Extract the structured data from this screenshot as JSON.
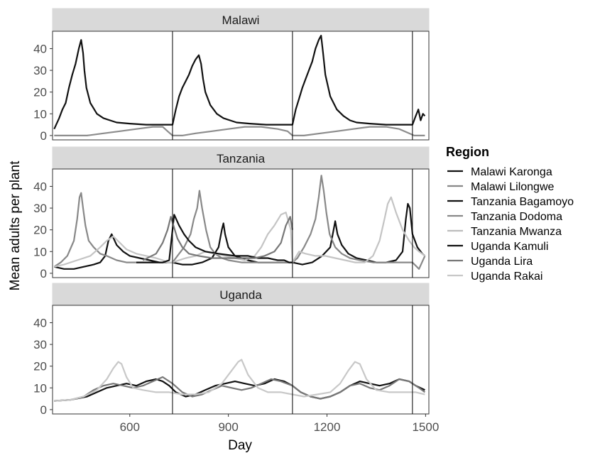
{
  "chart_data": {
    "type": "line",
    "xlabel": "Day",
    "ylabel": "Mean adults per plant",
    "xlim": [
      365,
      1510
    ],
    "ylim": [
      -2,
      48
    ],
    "xticks": [
      600,
      900,
      1200,
      1500
    ],
    "yticks": [
      0,
      10,
      20,
      30,
      40
    ],
    "vlines": [
      730,
      1095,
      1460
    ],
    "grid": false,
    "legend": {
      "title": "Region",
      "placement": "right",
      "entries": [
        {
          "label": "Malawi Karonga",
          "color": "#111111"
        },
        {
          "label": "Malawi Lilongwe",
          "color": "#888888"
        },
        {
          "label": "Tanzania Bagamoyo",
          "color": "#111111"
        },
        {
          "label": "Tanzania Dodoma",
          "color": "#888888"
        },
        {
          "label": "Tanzania Mwanza",
          "color": "#bdbdbd"
        },
        {
          "label": "Uganda Kamuli",
          "color": "#111111"
        },
        {
          "label": "Uganda Lira",
          "color": "#777777"
        },
        {
          "label": "Uganda Rakai",
          "color": "#c8c8c8"
        }
      ]
    },
    "panels": [
      {
        "title": "Malawi",
        "series": [
          {
            "name": "Malawi Karonga",
            "color": "#111111",
            "x": [
              370,
              385,
              395,
              405,
              415,
              425,
              435,
              445,
              452,
              458,
              462,
              468,
              480,
              500,
              520,
              540,
              560,
              600,
              650,
              700,
              730,
              740,
              750,
              760,
              770,
              780,
              790,
              800,
              810,
              817,
              823,
              830,
              845,
              865,
              885,
              905,
              925,
              965,
              1015,
              1065,
              1095,
              1105,
              1115,
              1125,
              1135,
              1145,
              1155,
              1165,
              1175,
              1182,
              1188,
              1195,
              1210,
              1230,
              1250,
              1270,
              1290,
              1330,
              1380,
              1430,
              1460,
              1470,
              1478,
              1485,
              1492,
              1498
            ],
            "y": [
              3,
              8,
              12,
              15,
              22,
              28,
              33,
              40,
              44,
              38,
              30,
              22,
              15,
              10,
              8,
              7,
              6,
              5.5,
              5,
              5,
              5,
              12,
              18,
              22,
              25,
              28,
              32,
              35,
              37,
              33,
              26,
              20,
              14,
              10,
              8,
              7,
              6,
              5.5,
              5,
              5,
              5,
              12,
              17,
              22,
              26,
              30,
              34,
              40,
              44,
              46,
              38,
              28,
              18,
              12,
              9,
              7,
              6,
              5.5,
              5,
              5,
              5,
              9,
              12,
              7,
              10,
              9
            ]
          },
          {
            "name": "Malawi Lilongwe",
            "color": "#8c8c8c",
            "x": [
              370,
              420,
              470,
              520,
              570,
              620,
              670,
              700,
              715,
              730,
              760,
              800,
              850,
              900,
              950,
              1000,
              1050,
              1080,
              1095,
              1130,
              1180,
              1230,
              1280,
              1330,
              1380,
              1420,
              1450,
              1465,
              1498
            ],
            "y": [
              0,
              0,
              0,
              1,
              2,
              3,
              4,
              4,
              2,
              0,
              0,
              1,
              2,
              3,
              4,
              4,
              3,
              2,
              0,
              0,
              1,
              2,
              3,
              4,
              4,
              3,
              1,
              0,
              0
            ]
          }
        ]
      },
      {
        "title": "Tanzania",
        "series": [
          {
            "name": "Tanzania Bagamoyo",
            "color": "#111111",
            "x": [
              370,
              400,
              430,
              460,
              490,
              510,
              525,
              535,
              545,
              560,
              580,
              600,
              630,
              660,
              690,
              730,
              760,
              790,
              820,
              850,
              870,
              880,
              885,
              890,
              900,
              920,
              940,
              960,
              990,
              1020,
              1050,
              1095,
              1125,
              1155,
              1185,
              1210,
              1220,
              1225,
              1232,
              1245,
              1265,
              1290,
              1320,
              1350,
              1380,
              1410,
              1430,
              1440,
              1446,
              1452,
              1460,
              1475,
              1490,
              1498
            ],
            "y": [
              3,
              2,
              2,
              3,
              4,
              5,
              8,
              15,
              18,
              13,
              10,
              8,
              7,
              6,
              5,
              5,
              4,
              4,
              5,
              7,
              12,
              20,
              23,
              18,
              12,
              8,
              7,
              6,
              5,
              5,
              5,
              5,
              4,
              5,
              8,
              12,
              20,
              24,
              18,
              13,
              9,
              7,
              6,
              5,
              5,
              6,
              10,
              25,
              32,
              30,
              18,
              12,
              9,
              8
            ]
          },
          {
            "name": "Tanzania Dodoma",
            "color": "#888888",
            "x": [
              370,
              390,
              410,
              430,
              440,
              447,
              452,
              458,
              465,
              475,
              490,
              510,
              530,
              560,
              590,
              620,
              660,
              700,
              720,
              730,
              745,
              765,
              785,
              795,
              805,
              812,
              820,
              832,
              845,
              860,
              880,
              900,
              940,
              980,
              1020,
              1060,
              1095,
              1110,
              1130,
              1150,
              1165,
              1175,
              1183,
              1190,
              1198,
              1208,
              1225,
              1245,
              1270,
              1300,
              1340,
              1380,
              1420,
              1460,
              1480,
              1498
            ],
            "y": [
              3,
              5,
              8,
              15,
              25,
              35,
              37,
              30,
              22,
              15,
              12,
              9,
              8,
              6,
              5,
              5,
              5,
              5,
              5,
              5,
              8,
              12,
              18,
              25,
              30,
              38,
              30,
              20,
              12,
              9,
              7,
              6,
              5,
              5,
              5,
              5,
              5,
              7,
              12,
              18,
              25,
              35,
              45,
              38,
              28,
              18,
              12,
              9,
              7,
              6,
              5,
              5,
              5,
              5,
              2,
              8
            ]
          },
          {
            "name": "Tanzania Mwanza",
            "color": "#c4c4c4",
            "x": [
              370,
              400,
              440,
              480,
              510,
              530,
              550,
              570,
              590,
              620,
              650,
              680,
              700,
              715,
              730,
              750,
              770,
              800,
              830,
              860,
              890,
              920,
              950,
              980,
              1000,
              1020,
              1040,
              1060,
              1075,
              1090,
              1095,
              1115,
              1135,
              1165,
              1195,
              1225,
              1255,
              1285,
              1315,
              1340,
              1360,
              1375,
              1385,
              1395,
              1410,
              1430,
              1450,
              1465,
              1480,
              1498
            ],
            "y": [
              3,
              4,
              6,
              8,
              12,
              15,
              17,
              14,
              11,
              9,
              8,
              7,
              6,
              5,
              5,
              6,
              7,
              8,
              10,
              9,
              8,
              7,
              6,
              8,
              12,
              18,
              22,
              27,
              28,
              20,
              5,
              10,
              9,
              8,
              8,
              7,
              6,
              5,
              5,
              8,
              15,
              25,
              32,
              35,
              28,
              20,
              15,
              12,
              10,
              8
            ]
          },
          {
            "name": "Uganda Kamuli",
            "color": "#111111",
            "x": [
              620,
              660,
              700,
              720,
              735,
              750,
              765,
              780,
              800,
              830,
              870,
              920,
              960,
              990,
              1020,
              1050,
              1070,
              1085,
              1095
            ],
            "y": [
              5,
              5,
              5,
              6,
              27,
              22,
              18,
              15,
              12,
              10,
              9,
              8,
              8,
              7,
              7,
              6,
              6,
              5,
              5
            ]
          },
          {
            "name": "Uganda Lira",
            "color": "#777777",
            "x": [
              640,
              680,
              700,
              715,
              725,
              733,
              745,
              760,
              780,
              810,
              850,
              900,
              940,
              980,
              1010,
              1040,
              1060,
              1075,
              1088,
              1095
            ],
            "y": [
              6,
              9,
              14,
              20,
              26,
              22,
              16,
              12,
              9,
              8,
              7,
              7,
              7,
              7,
              8,
              10,
              14,
              22,
              26,
              20
            ]
          }
        ]
      },
      {
        "title": "Uganda",
        "series": [
          {
            "name": "Uganda Kamuli",
            "color": "#111111",
            "x": [
              370,
              420,
              470,
              500,
              530,
              560,
              590,
              620,
              650,
              680,
              700,
              720,
              740,
              770,
              800,
              830,
              860,
              890,
              920,
              950,
              980,
              1010,
              1040,
              1070,
              1095,
              1120,
              1150,
              1180,
              1210,
              1240,
              1270,
              1300,
              1330,
              1360,
              1390,
              1420,
              1450,
              1470,
              1498
            ],
            "y": [
              4,
              4.5,
              6,
              8,
              10,
              11,
              12,
              11,
              13,
              14,
              13,
              11,
              8,
              6,
              7,
              9,
              11,
              12,
              13,
              12,
              11,
              12,
              14,
              13,
              11,
              8,
              6,
              5,
              6,
              8,
              11,
              13,
              12,
              11,
              12,
              14,
              13,
              11,
              9
            ]
          },
          {
            "name": "Uganda Lira",
            "color": "#777777",
            "x": [
              370,
              420,
              460,
              490,
              520,
              550,
              580,
              610,
              640,
              670,
              700,
              730,
              760,
              790,
              820,
              850,
              880,
              910,
              940,
              970,
              1000,
              1030,
              1060,
              1095,
              1120,
              1150,
              1180,
              1210,
              1240,
              1270,
              1300,
              1330,
              1360,
              1390,
              1420,
              1450,
              1480,
              1498
            ],
            "y": [
              4,
              4.5,
              6,
              9,
              11,
              12,
              11,
              10,
              11,
              13,
              15,
              12,
              8,
              6,
              7,
              9,
              11,
              10,
              9,
              10,
              12,
              14,
              13,
              11,
              8,
              6,
              5,
              6,
              8,
              11,
              12,
              10,
              9,
              11,
              14,
              13,
              10,
              8
            ]
          },
          {
            "name": "Uganda Rakai",
            "color": "#c8c8c8",
            "x": [
              370,
              420,
              460,
              500,
              530,
              550,
              565,
              575,
              590,
              610,
              640,
              680,
              720,
              760,
              800,
              840,
              880,
              910,
              930,
              940,
              960,
              990,
              1020,
              1060,
              1095,
              1130,
              1170,
              1210,
              1240,
              1265,
              1285,
              1300,
              1320,
              1350,
              1390,
              1430,
              1470,
              1498
            ],
            "y": [
              4,
              4.5,
              6,
              9,
              14,
              19,
              22,
              21,
              15,
              10,
              9,
              8,
              8,
              7,
              7,
              8,
              12,
              18,
              22,
              23,
              16,
              10,
              8,
              8,
              7,
              6,
              7,
              8,
              12,
              18,
              22,
              21,
              14,
              9,
              8,
              8,
              8,
              7
            ]
          }
        ]
      }
    ]
  }
}
